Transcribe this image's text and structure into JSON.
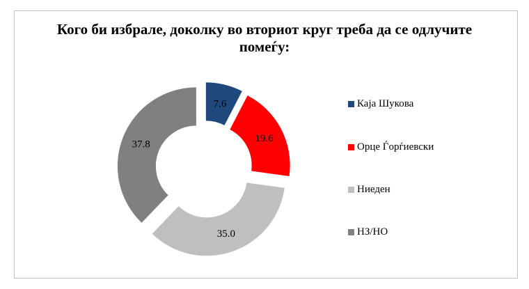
{
  "chart_data": {
    "type": "donut",
    "title": "Кого би избрале, доколку во вториот круг треба да се одлучите помеѓу:",
    "categories": [
      "Каја Шукова",
      "Орце Ѓорѓиевски",
      "Ниеден",
      "НЗ/НО"
    ],
    "values": [
      7.6,
      19.6,
      35.0,
      37.8
    ],
    "labels": [
      "7.6",
      "19.6",
      "35.0",
      "37.8"
    ],
    "colors": [
      "#1F497D",
      "#FF0000",
      "#BFBFBF",
      "#808080"
    ],
    "exploded": true,
    "legend_position": "right"
  }
}
